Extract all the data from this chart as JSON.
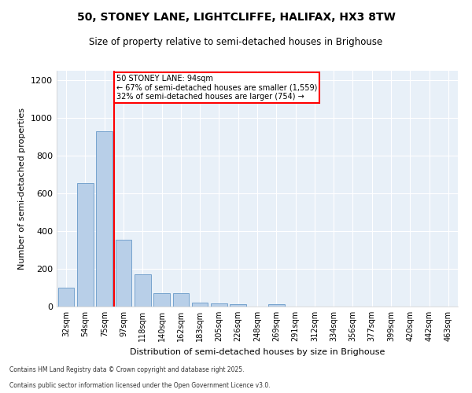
{
  "title1": "50, STONEY LANE, LIGHTCLIFFE, HALIFAX, HX3 8TW",
  "title2": "Size of property relative to semi-detached houses in Brighouse",
  "xlabel": "Distribution of semi-detached houses by size in Brighouse",
  "ylabel": "Number of semi-detached properties",
  "categories": [
    "32sqm",
    "54sqm",
    "75sqm",
    "97sqm",
    "118sqm",
    "140sqm",
    "162sqm",
    "183sqm",
    "205sqm",
    "226sqm",
    "248sqm",
    "269sqm",
    "291sqm",
    "312sqm",
    "334sqm",
    "356sqm",
    "377sqm",
    "399sqm",
    "420sqm",
    "442sqm",
    "463sqm"
  ],
  "values": [
    100,
    655,
    930,
    355,
    170,
    72,
    72,
    20,
    18,
    14,
    0,
    14,
    0,
    0,
    0,
    0,
    0,
    0,
    0,
    0,
    0
  ],
  "bar_color": "#b8cfe8",
  "bar_edge_color": "#6899c8",
  "vline_color": "red",
  "vline_pos": 2.5,
  "annotation_text": "50 STONEY LANE: 94sqm\n← 67% of semi-detached houses are smaller (1,559)\n32% of semi-detached houses are larger (754) →",
  "annotation_box_color": "white",
  "annotation_box_edge_color": "red",
  "ylim": [
    0,
    1250
  ],
  "yticks": [
    0,
    200,
    400,
    600,
    800,
    1000,
    1200
  ],
  "background_color": "#e8f0f8",
  "grid_color": "white",
  "footer1": "Contains HM Land Registry data © Crown copyright and database right 2025.",
  "footer2": "Contains public sector information licensed under the Open Government Licence v3.0."
}
